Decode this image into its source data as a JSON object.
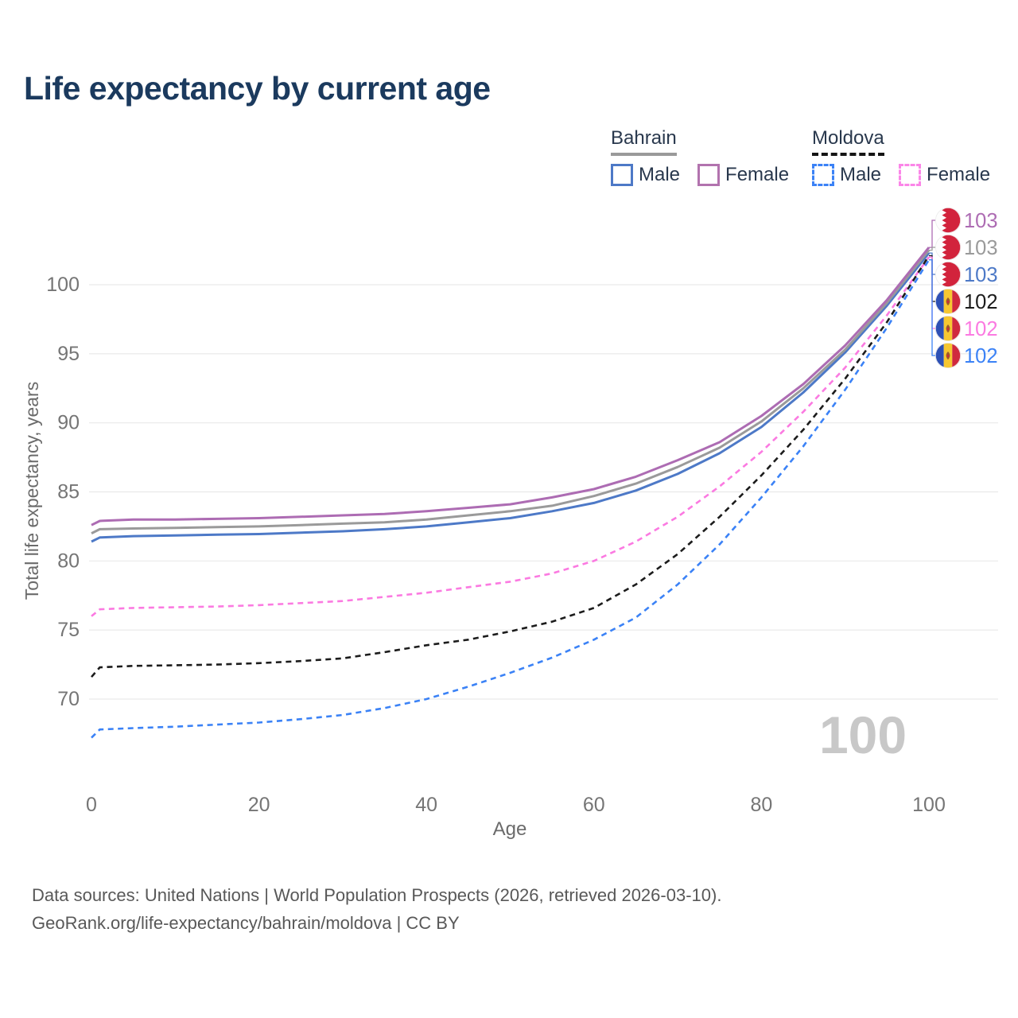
{
  "header": {
    "title": "Life expectancy by current age"
  },
  "legend": {
    "groups": [
      {
        "name": "Bahrain",
        "line_style": "solid",
        "rule_color": "#9a9a9a",
        "items": [
          {
            "label": "Male",
            "color": "#4d79c7"
          },
          {
            "label": "Female",
            "color": "#b273ae"
          }
        ]
      },
      {
        "name": "Moldova",
        "line_style": "dashed",
        "rule_color": "#151515",
        "items": [
          {
            "label": "Male",
            "color": "#3b82f6"
          },
          {
            "label": "Female",
            "color": "#fb86e8"
          }
        ]
      }
    ]
  },
  "chart_data": {
    "type": "line",
    "title": "Life expectancy by current age",
    "xlabel": "Age",
    "ylabel": "Total life expectancy, years",
    "watermark": "100",
    "grid": "horizontal",
    "legend_position": "top-right",
    "xlim": [
      0,
      100
    ],
    "ylim": [
      66,
      104
    ],
    "x_ticks": [
      0,
      20,
      40,
      60,
      80,
      100
    ],
    "y_ticks": [
      70,
      75,
      80,
      85,
      90,
      95,
      100
    ],
    "x": [
      0,
      1,
      5,
      10,
      15,
      20,
      25,
      30,
      35,
      40,
      45,
      50,
      55,
      60,
      65,
      70,
      75,
      80,
      85,
      90,
      95,
      100
    ],
    "series": [
      {
        "name": "Bahrain Female",
        "flag": "bahrain",
        "color": "#ad6cb3",
        "dash": "solid",
        "end_label": "103",
        "values": [
          82.6,
          82.9,
          83,
          83,
          83.05,
          83.1,
          83.2,
          83.3,
          83.4,
          83.6,
          83.85,
          84.1,
          84.6,
          85.2,
          86.1,
          87.3,
          88.6,
          90.5,
          92.8,
          95.6,
          98.9,
          102.7
        ]
      },
      {
        "name": "Bahrain",
        "flag": "bahrain",
        "color": "#9a9a9a",
        "dash": "solid",
        "end_label": "103",
        "values": [
          82,
          82.3,
          82.35,
          82.4,
          82.45,
          82.5,
          82.6,
          82.7,
          82.8,
          83,
          83.3,
          83.6,
          84,
          84.7,
          85.6,
          86.8,
          88.2,
          90.1,
          92.5,
          95.3,
          98.7,
          102.5
        ]
      },
      {
        "name": "Bahrain Male",
        "flag": "bahrain",
        "color": "#4d79c7",
        "dash": "solid",
        "end_label": "103",
        "values": [
          81.4,
          81.7,
          81.8,
          81.85,
          81.9,
          81.95,
          82.05,
          82.15,
          82.3,
          82.5,
          82.8,
          83.1,
          83.6,
          84.2,
          85.1,
          86.3,
          87.8,
          89.7,
          92.2,
          95.1,
          98.5,
          102.3
        ]
      },
      {
        "name": "Moldova",
        "flag": "moldova",
        "color": "#1c1c1c",
        "dash": "dashed",
        "end_label": "102",
        "values": [
          71.6,
          72.3,
          72.4,
          72.45,
          72.5,
          72.6,
          72.75,
          72.95,
          73.4,
          73.9,
          74.3,
          74.9,
          75.6,
          76.6,
          78.3,
          80.5,
          83.2,
          86.2,
          89.5,
          93.2,
          97.3,
          102.1
        ]
      },
      {
        "name": "Moldova Female",
        "flag": "moldova",
        "color": "#fb7ae1",
        "dash": "dashed",
        "end_label": "102",
        "values": [
          76,
          76.5,
          76.6,
          76.65,
          76.7,
          76.8,
          76.95,
          77.1,
          77.4,
          77.7,
          78.1,
          78.5,
          79.1,
          80,
          81.4,
          83.2,
          85.4,
          87.9,
          90.8,
          94,
          97.8,
          102
        ]
      },
      {
        "name": "Moldova Male",
        "flag": "moldova",
        "color": "#3b82f6",
        "dash": "dashed",
        "end_label": "102",
        "values": [
          67.2,
          67.8,
          67.9,
          68,
          68.15,
          68.3,
          68.55,
          68.85,
          69.35,
          70,
          70.9,
          71.9,
          73,
          74.3,
          75.9,
          78.3,
          81.2,
          84.6,
          88.3,
          92.4,
          96.9,
          101.8
        ]
      }
    ]
  },
  "footer": {
    "line1": "Data sources: United Nations | World Population Prospects (2026, retrieved 2026-03-10).",
    "line2": "GeoRank.org/life-expectancy/bahrain/moldova | CC BY"
  }
}
